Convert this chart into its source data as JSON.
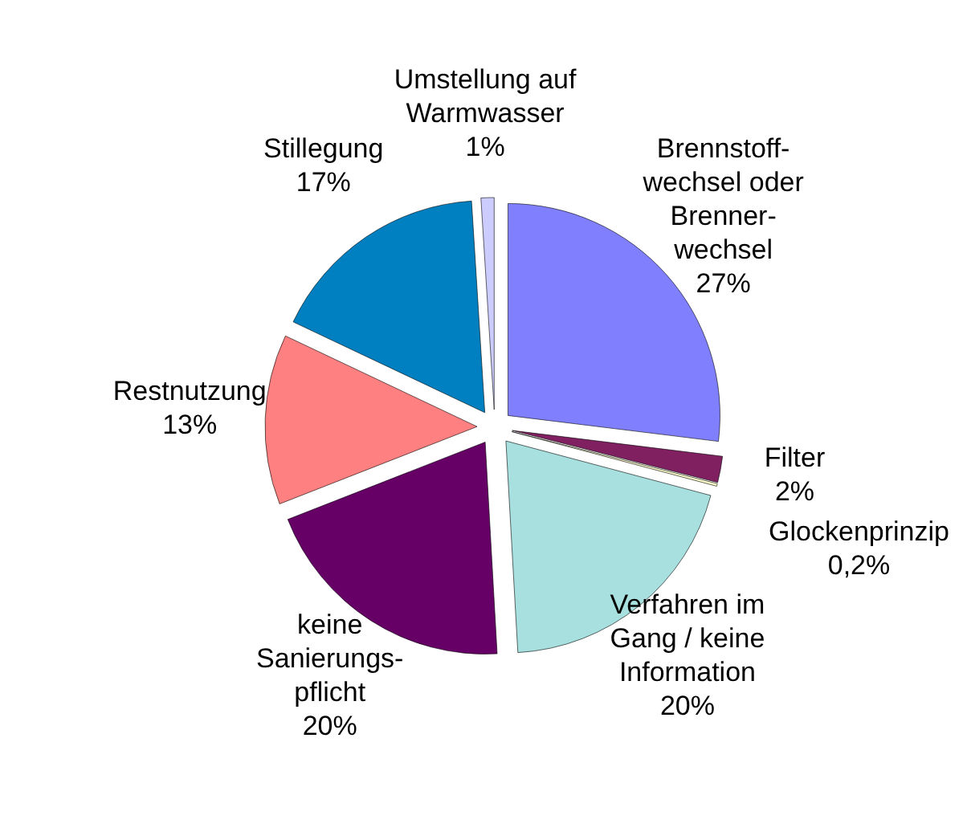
{
  "chart_data": {
    "type": "pie",
    "categories": [
      "Brennstoff-\nwechsel oder\nBrenner-\nwechsel",
      "Filter",
      "Glockenprinzip",
      "Verfahren im\nGang / keine\nInformation",
      "keine\nSanierungs-\npflicht",
      "Restnutzung",
      "Stillegung",
      "Umstellung auf\nWarmwasser"
    ],
    "values": [
      27,
      2,
      0.2,
      20,
      20,
      13,
      17,
      1
    ],
    "value_labels": [
      "27%",
      "2%",
      "0,2%",
      "20%",
      "20%",
      "13%",
      "17%",
      "1%"
    ],
    "colors": [
      "#8080ff",
      "#802060",
      "#ffffcc",
      "#a8e0e0",
      "#660066",
      "#ff8080",
      "#0080c0",
      "#ccccff"
    ]
  }
}
